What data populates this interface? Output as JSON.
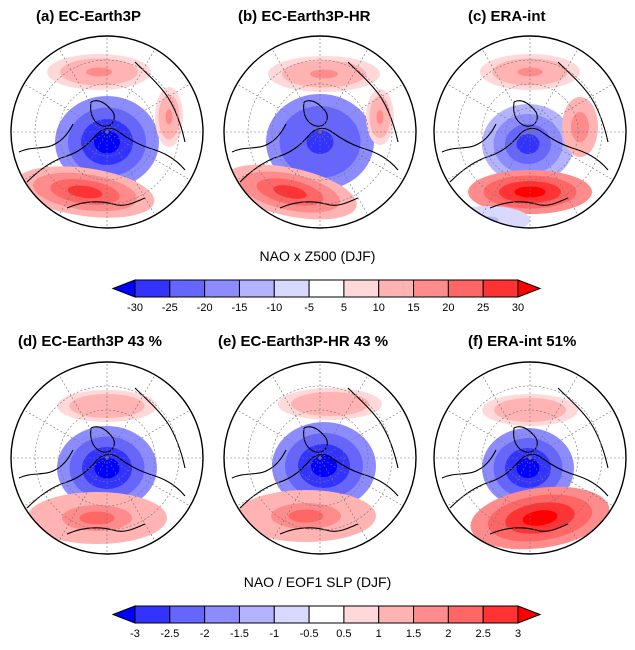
{
  "row1": {
    "panels": [
      {
        "title": "(a) EC-Earth3P"
      },
      {
        "title": "(b) EC-Earth3P-HR"
      },
      {
        "title": "(c) ERA-int"
      }
    ],
    "colorbar": {
      "title": "NAO x Z500 (DJF)",
      "ticks": [
        "-30",
        "-25",
        "-20",
        "-15",
        "-10",
        "-5",
        "5",
        "10",
        "15",
        "20",
        "25",
        "30"
      ]
    }
  },
  "row2": {
    "panels": [
      {
        "title": "(d) EC-Earth3P 43 %"
      },
      {
        "title": "(e) EC-Earth3P-HR 43 %"
      },
      {
        "title": "(f) ERA-int 51%"
      }
    ],
    "colorbar": {
      "title": "NAO / EOF1 SLP (DJF)",
      "ticks": [
        "-3",
        "-2.5",
        "-2",
        "-1.5",
        "-1",
        "-0.5",
        "0.5",
        "1",
        "1.5",
        "2",
        "2.5",
        "3"
      ]
    }
  },
  "palette": [
    "#0000ff",
    "#3333ff",
    "#6666ff",
    "#8c8cff",
    "#b3b3ff",
    "#d9d9ff",
    "#ffffff",
    "#ffd9d9",
    "#ffb3b3",
    "#ff8c8c",
    "#ff6666",
    "#ff3333",
    "#ff0000"
  ]
}
